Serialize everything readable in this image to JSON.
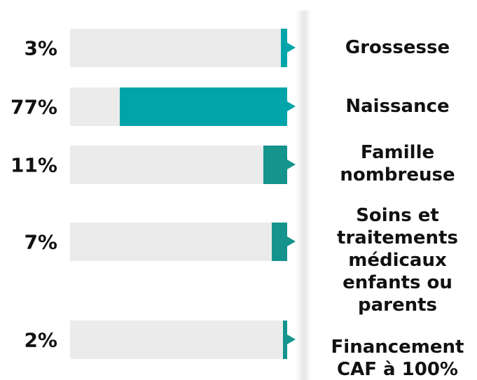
{
  "chart_data": {
    "type": "bar",
    "categories": [
      "Grossesse",
      "Naissance",
      "Famille nombreuse",
      "Soins et traitements médicaux enfants ou parents",
      "Financement CAF à 100%"
    ],
    "values": [
      3,
      77,
      11,
      7,
      2
    ],
    "value_labels": [
      "3%",
      "77%",
      "11%",
      "7%",
      "2%"
    ],
    "colors": [
      "#00a4a9",
      "#00a4a9",
      "#15938d",
      "#15938d",
      "#15938d"
    ],
    "xlim": [
      0,
      100
    ]
  }
}
